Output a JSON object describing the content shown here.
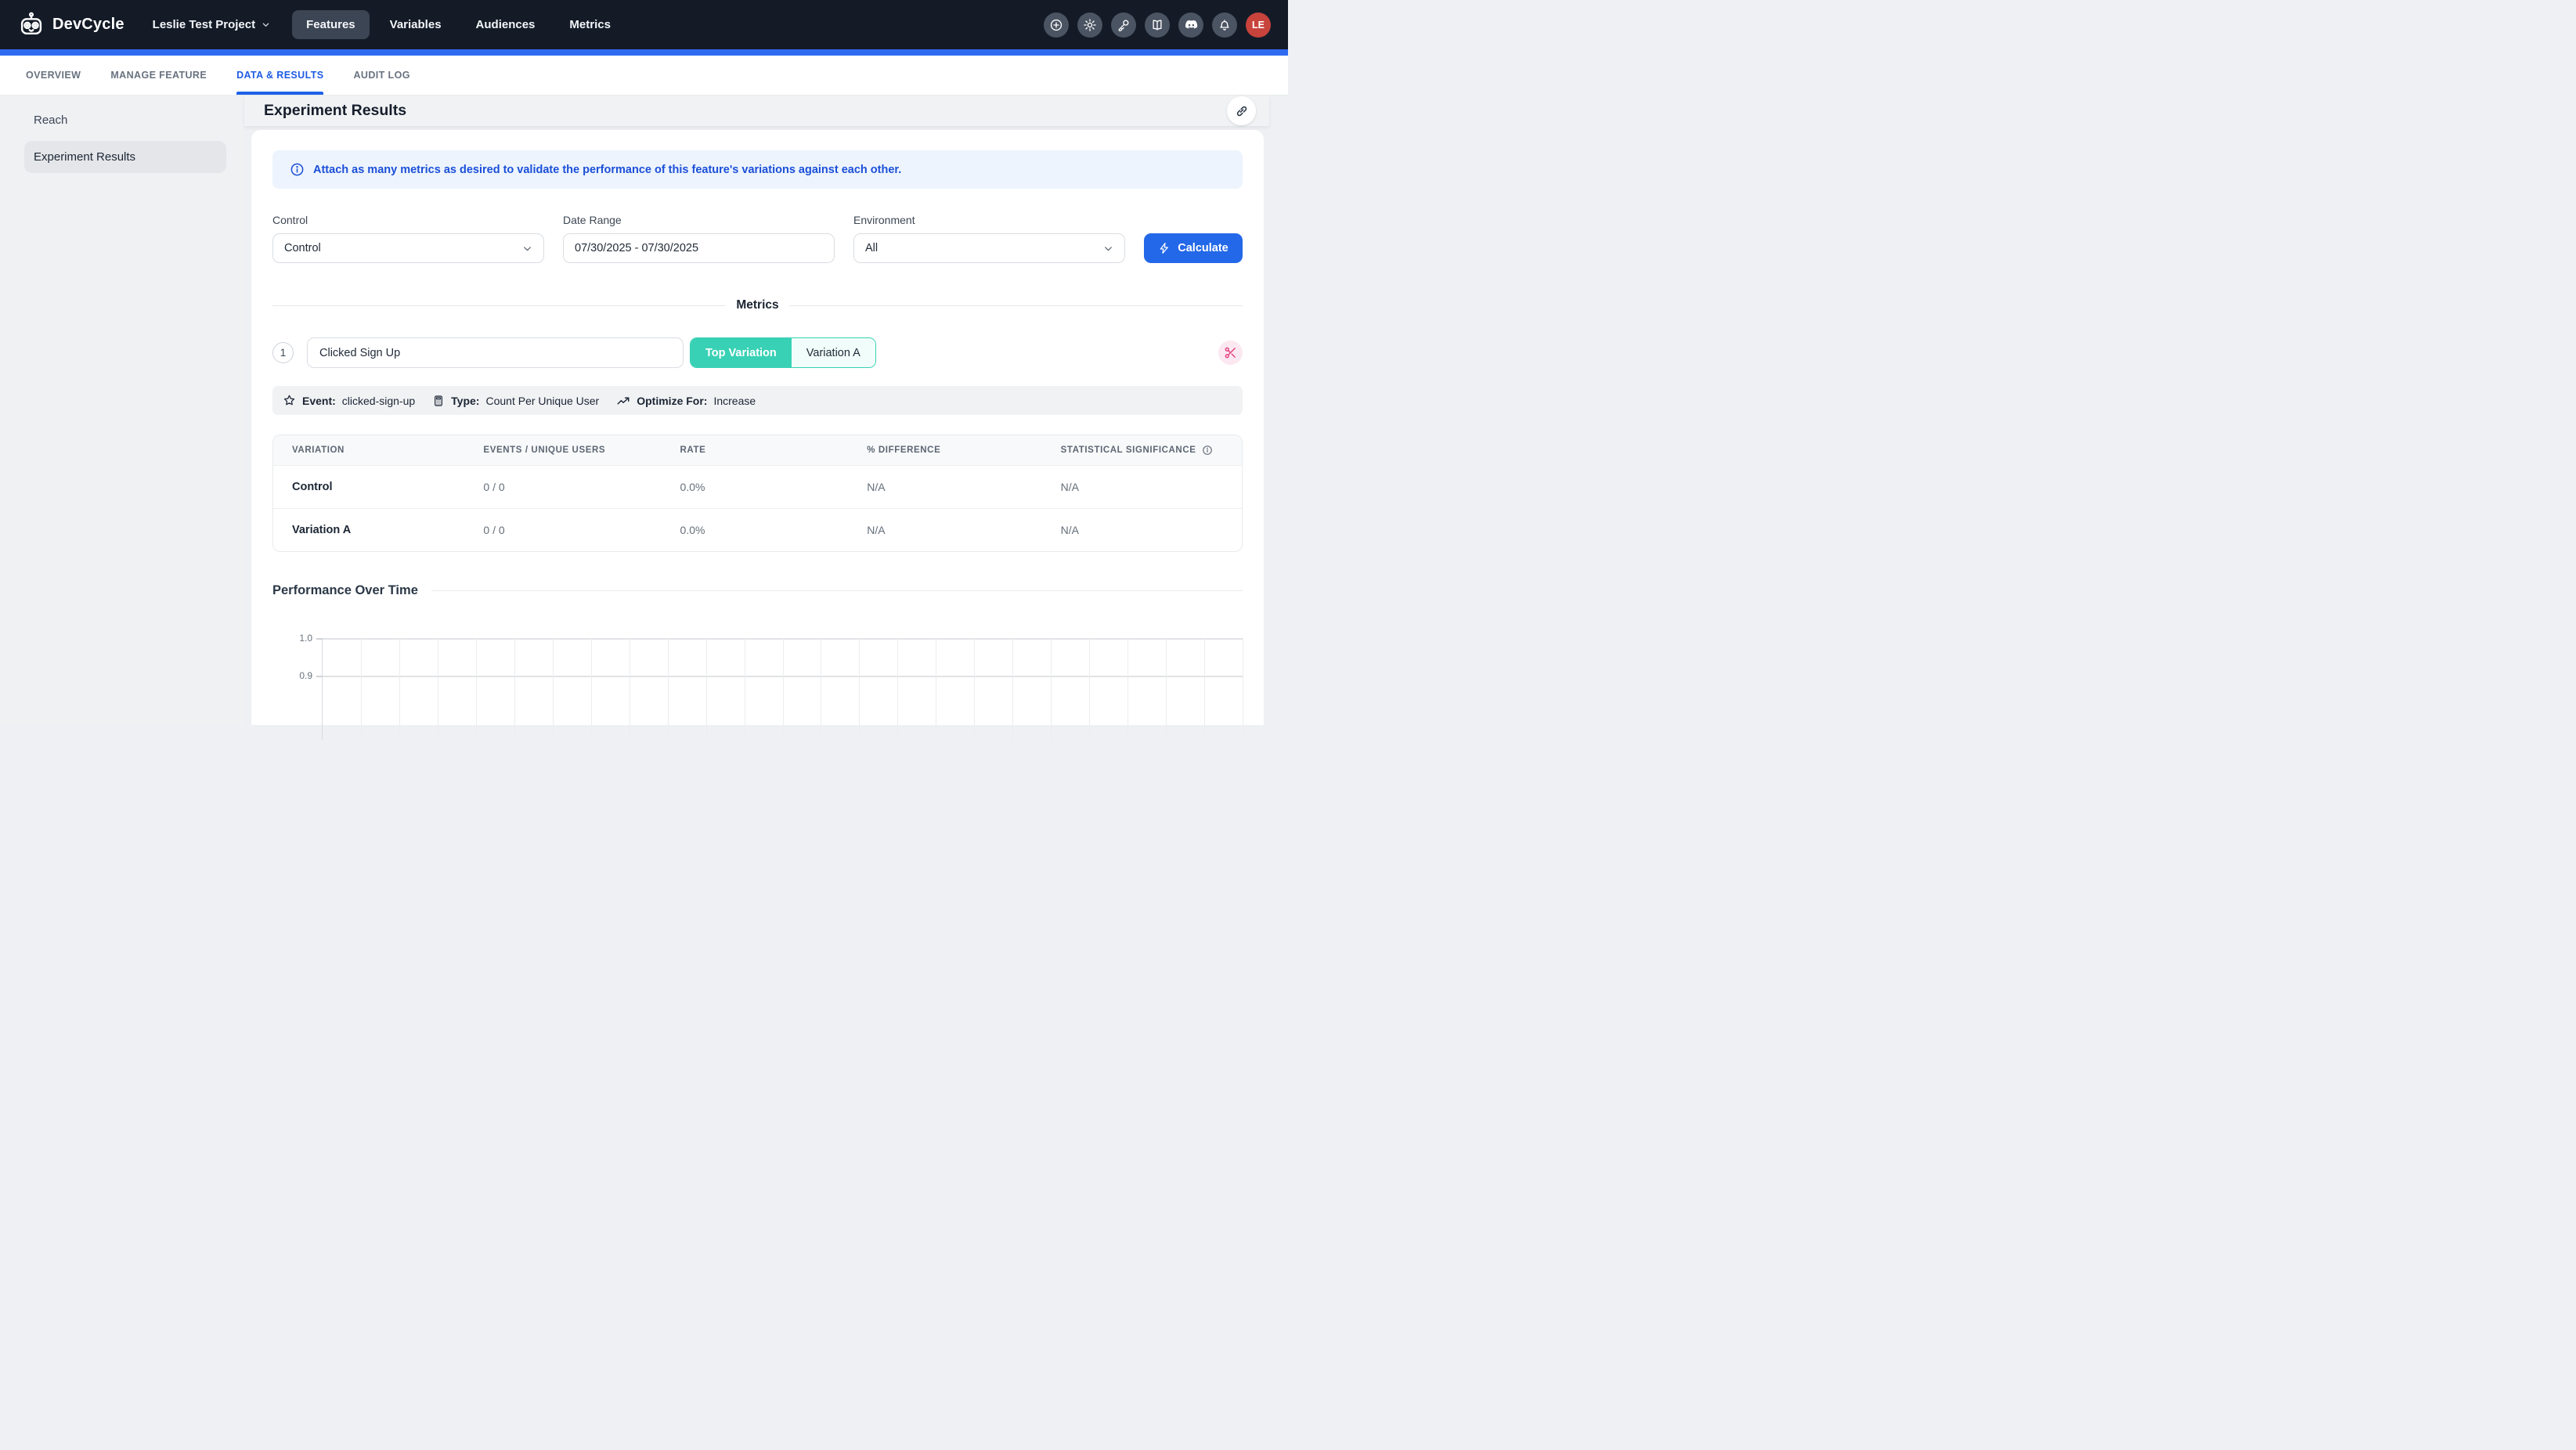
{
  "navbar": {
    "brand": "DevCycle",
    "project_selector": "Leslie Test Project",
    "items": [
      {
        "label": "Features",
        "active": true
      },
      {
        "label": "Variables",
        "active": false
      },
      {
        "label": "Audiences",
        "active": false
      },
      {
        "label": "Metrics",
        "active": false
      }
    ],
    "icon_buttons": [
      "add",
      "settings",
      "key",
      "docs",
      "discord",
      "notifications"
    ],
    "avatar_initials": "LE",
    "colors": {
      "background": "#141b27",
      "accent_bar": "#2e6bf0",
      "avatar": "#c8433c"
    }
  },
  "tabs": [
    {
      "label": "OVERVIEW",
      "active": false
    },
    {
      "label": "MANAGE FEATURE",
      "active": false
    },
    {
      "label": "DATA & RESULTS",
      "active": true
    },
    {
      "label": "AUDIT LOG",
      "active": false
    }
  ],
  "sidebar": {
    "items": [
      {
        "label": "Reach",
        "active": false
      },
      {
        "label": "Experiment Results",
        "active": true
      }
    ]
  },
  "page": {
    "title": "Experiment Results"
  },
  "banner": {
    "text": "Attach as many metrics as desired to validate the performance of this feature's variations against each other."
  },
  "filters": {
    "control": {
      "label": "Control",
      "value": "Control"
    },
    "date_range": {
      "label": "Date Range",
      "value": "07/30/2025 - 07/30/2025"
    },
    "environment": {
      "label": "Environment",
      "value": "All"
    },
    "calculate_label": "Calculate"
  },
  "metrics_section": {
    "divider_label": "Metrics",
    "metric": {
      "index": "1",
      "name": "Clicked Sign Up",
      "toggle": [
        {
          "label": "Top Variation",
          "active": true
        },
        {
          "label": "Variation A",
          "active": false
        }
      ],
      "event_label": "Event:",
      "event_value": "clicked-sign-up",
      "type_label": "Type:",
      "type_value": "Count Per Unique User",
      "optimize_label": "Optimize For:",
      "optimize_value": "Increase"
    },
    "table": {
      "columns": [
        "VARIATION",
        "EVENTS / UNIQUE USERS",
        "RATE",
        "% DIFFERENCE",
        "STATISTICAL SIGNIFICANCE"
      ],
      "rows": [
        {
          "variation": "Control",
          "events": "0 / 0",
          "rate": "0.0%",
          "difference": "N/A",
          "significance": "N/A"
        },
        {
          "variation": "Variation A",
          "events": "0 / 0",
          "rate": "0.0%",
          "difference": "N/A",
          "significance": "N/A"
        }
      ]
    }
  },
  "chart_data": {
    "type": "line",
    "title": "Performance Over Time",
    "series": [],
    "no_data": true,
    "visible_yticks": [
      "1.0",
      "0.9"
    ],
    "ytick_spacing_px": 48,
    "x_gridline_count": 24,
    "grid": true
  }
}
